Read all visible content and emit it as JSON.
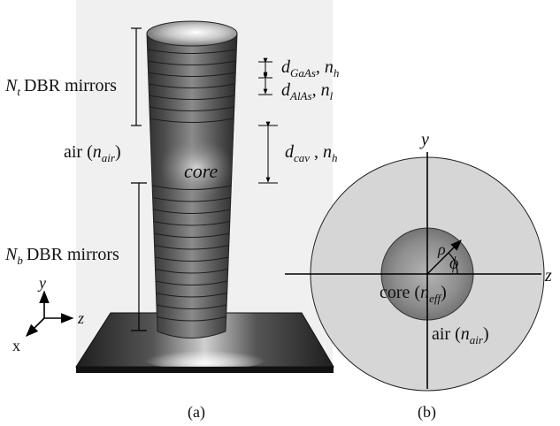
{
  "panel_a": {
    "top_mirrors_sym": "N",
    "top_mirrors_sub": "t",
    "top_mirrors_text": "DBR mirrors",
    "bottom_mirrors_sym": "N",
    "bottom_mirrors_sub": "b",
    "bottom_mirrors_text": "DBR mirrors",
    "air_prefix": "air (",
    "air_sym": "n",
    "air_sub": "air",
    "air_suffix": ")",
    "core_label": "core",
    "gaas_sym": "d",
    "gaas_sub": "GaAs",
    "gaas_sep": ", ",
    "gaas_n": "n",
    "gaas_n_sub": "h",
    "alas_sym": "d",
    "alas_sub": "AlAs",
    "alas_sep": ", ",
    "alas_n": "n",
    "alas_n_sub": "l",
    "cav_sym": "d",
    "cav_sub": "cav",
    "cav_sep": " , ",
    "cav_n": "n",
    "cav_n_sub": "h",
    "axis_y": "y",
    "axis_z": "z",
    "axis_x": "x",
    "caption": "(a)"
  },
  "panel_b": {
    "axis_y": "y",
    "axis_z": "z",
    "rho": "ρ",
    "phi": "ϕ",
    "core_prefix": "core (",
    "core_sym": "n",
    "core_sub": "eff",
    "core_suffix": ")",
    "air_prefix": "air (",
    "air_sym": "n",
    "air_sub": "air",
    "air_suffix": ")",
    "caption": "(b)"
  },
  "colors": {
    "pillar_dark": "#3a3a3a",
    "pillar_light": "#8a8a8a",
    "core_disk": "#8c8c8c",
    "air_disk": "#d6d6d6"
  }
}
